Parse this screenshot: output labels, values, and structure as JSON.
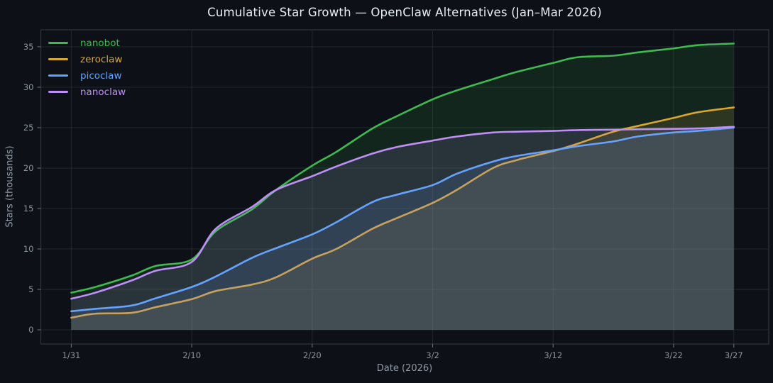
{
  "colors": {
    "background": "#0d1117",
    "grid": "rgba(139,148,158,0.16)",
    "spine": "#30363d",
    "tick_mark": "#6e7681",
    "tick_label": "#8b949e",
    "axis_label": "#9099a5",
    "title": "#e6edf3",
    "fill_opacity": 0.13
  },
  "chart_data": {
    "type": "line",
    "title": "Cumulative Star Growth — OpenClaw Alternatives (Jan–Mar 2026)",
    "xlabel": "Date (2026)",
    "ylabel": "Stars (thousands)",
    "grid": true,
    "legend_position": "top-left",
    "fill_under_lines": true,
    "x_unit": "days since 1/31/2026",
    "x_days": [
      0,
      2,
      5,
      7,
      10,
      12,
      15,
      17,
      20,
      22,
      25,
      27,
      30,
      32,
      35,
      37,
      40,
      42,
      45,
      47,
      50,
      52,
      55
    ],
    "x_ticks": [
      {
        "day": 0,
        "label": "1/31"
      },
      {
        "day": 10,
        "label": "2/10"
      },
      {
        "day": 20,
        "label": "2/20"
      },
      {
        "day": 30,
        "label": "3/2"
      },
      {
        "day": 40,
        "label": "3/12"
      },
      {
        "day": 50,
        "label": "3/22"
      },
      {
        "day": 55,
        "label": "3/27"
      }
    ],
    "y_ticks": [
      0,
      5,
      10,
      15,
      20,
      25,
      30,
      35
    ],
    "xlim_days": [
      -2.53,
      57.9
    ],
    "ylim": [
      -1.75,
      37.1
    ],
    "series": [
      {
        "name": "nanobot",
        "color": "#3fb950",
        "values": [
          4.6,
          5.3,
          6.7,
          7.9,
          8.7,
          12.2,
          14.9,
          17.3,
          20.3,
          22.0,
          24.9,
          26.4,
          28.5,
          29.6,
          31.0,
          31.9,
          33.0,
          33.7,
          33.9,
          34.3,
          34.8,
          35.2,
          35.4
        ]
      },
      {
        "name": "zeroclaw",
        "color": "#d9a62e",
        "values": [
          1.5,
          2.0,
          2.1,
          2.8,
          3.8,
          4.8,
          5.6,
          6.5,
          8.8,
          10.0,
          12.5,
          13.8,
          15.7,
          17.3,
          20.0,
          21.0,
          22.1,
          23.0,
          24.5,
          25.2,
          26.2,
          26.9,
          27.5
        ]
      },
      {
        "name": "picoclaw",
        "color": "#58a6ff",
        "values": [
          2.3,
          2.6,
          3.0,
          3.9,
          5.3,
          6.6,
          8.9,
          10.1,
          11.8,
          13.3,
          15.8,
          16.7,
          17.9,
          19.3,
          20.8,
          21.5,
          22.2,
          22.7,
          23.3,
          23.9,
          24.4,
          24.6,
          25.0
        ]
      },
      {
        "name": "nanoclaw",
        "color": "#bf8ff7",
        "values": [
          3.85,
          4.6,
          6.1,
          7.3,
          8.4,
          12.5,
          15.2,
          17.3,
          19.0,
          20.2,
          21.8,
          22.6,
          23.4,
          23.9,
          24.4,
          24.5,
          24.6,
          24.7,
          24.75,
          24.8,
          24.85,
          24.9,
          25.1
        ]
      }
    ]
  }
}
